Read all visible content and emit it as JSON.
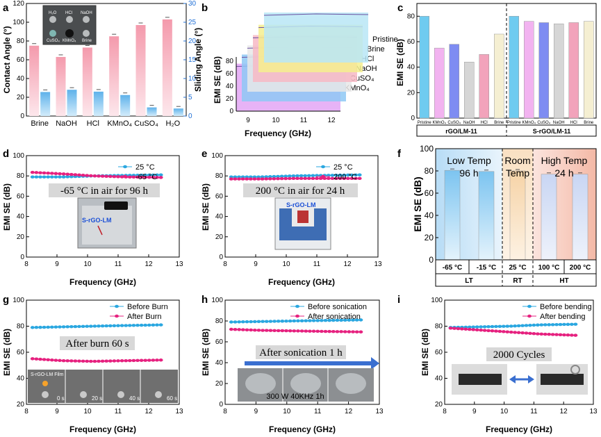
{
  "colors": {
    "pink": "#f2a5ba",
    "blue": "#6fb8ea",
    "cyan_marker": "#2aa7e0",
    "magenta_marker": "#e6217f",
    "arrow": "#3a6fd0"
  },
  "chart_data": [
    {
      "id": "a",
      "panel_label": "a",
      "type": "bar",
      "categories": [
        "Brine",
        "NaOH",
        "HCl",
        "KMnO₄",
        "CuSO₄",
        "H₂O"
      ],
      "series": [
        {
          "name": "",
          "axis": "left",
          "values": [
            75,
            63,
            73,
            85,
            97,
            103
          ]
        },
        {
          "name": "",
          "axis": "right",
          "values": [
            6.4,
            7.0,
            6.5,
            5.6,
            2.3,
            2.0
          ]
        }
      ],
      "ylabel": "Contact Angle (°)",
      "y2label": "Sliding Angle (°)",
      "ylim": [
        0,
        120
      ],
      "y2lim": [
        0,
        30
      ],
      "yticks": [
        0,
        20,
        40,
        60,
        80,
        100,
        120
      ],
      "y2ticks": [
        0,
        5,
        10,
        15,
        20,
        25,
        30
      ],
      "inset_labels": [
        "H₂O",
        "HCl",
        "NaOH",
        "CuSO₄",
        "KMnO₄",
        "Brine"
      ]
    },
    {
      "id": "b",
      "panel_label": "b",
      "type": "area",
      "xlabel": "Frequency (GHz)",
      "ylabel": "EMI SE (dB)",
      "xticks": [
        9,
        10,
        11,
        12
      ],
      "yticks": [
        0,
        20,
        40,
        60,
        80
      ],
      "series": [
        {
          "name": "Pristine",
          "color": "#b8e6f6",
          "level": 80
        },
        {
          "name": "Brine",
          "color": "#f5ef8e",
          "level": 76
        },
        {
          "name": "HCl",
          "color": "#f7b8c4",
          "level": 75
        },
        {
          "name": "NaOH",
          "color": "#e7e7e7",
          "level": 74
        },
        {
          "name": "CuSO₄",
          "color": "#8ec8f4",
          "level": 75
        },
        {
          "name": "KMnO₄",
          "color": "#e3a6f5",
          "level": 76
        }
      ]
    },
    {
      "id": "c",
      "panel_label": "c",
      "type": "bar",
      "ylabel": "EMI SE (dB)",
      "ylim": [
        0,
        90
      ],
      "yticks": [
        0,
        20,
        40,
        60,
        80
      ],
      "categories": [
        "Pristine",
        "KMnO₄",
        "CuSO₄",
        "NaOH",
        "HCl",
        "Brine",
        "Pristine",
        "KMnO₄",
        "CuSO₄",
        "NaOH",
        "HCl",
        "Brine"
      ],
      "values": [
        80,
        55,
        58,
        44,
        50,
        66,
        80,
        76,
        75,
        74,
        75,
        76
      ],
      "colors": [
        "#6fcbf0",
        "#f2b3f0",
        "#7e8cf2",
        "#d6d6d6",
        "#f2a3bb",
        "#f5efd2",
        "#6fcbf0",
        "#f2b3f0",
        "#7e8cf2",
        "#d6d6d6",
        "#f2a3bb",
        "#f5efd2"
      ],
      "groups": [
        "rGO/LM-11",
        "S-rGO/LM-11"
      ]
    },
    {
      "id": "d",
      "panel_label": "d",
      "type": "line",
      "xlabel": "Frequency (GHz)",
      "ylabel": "EMI SE (dB)",
      "xlim": [
        8,
        13
      ],
      "ylim": [
        0,
        100
      ],
      "xticks": [
        8,
        9,
        10,
        11,
        12,
        13
      ],
      "yticks": [
        0,
        20,
        40,
        60,
        80,
        100
      ],
      "series": [
        {
          "name": "25 °C",
          "color": "#2aa7e0",
          "x": [
            8.2,
            9.2,
            10.2,
            11.2,
            12.4
          ],
          "y": [
            79,
            79,
            80,
            80.5,
            81
          ]
        },
        {
          "name": "-65 °C",
          "color": "#e6217f",
          "x": [
            8.2,
            9.2,
            10.2,
            11.2,
            12.4
          ],
          "y": [
            83.5,
            82,
            80,
            79,
            78.5
          ]
        }
      ],
      "annotation": "-65 °C in air for 96 h",
      "inset_label": "S-rGO-LM"
    },
    {
      "id": "e",
      "panel_label": "e",
      "type": "line",
      "xlabel": "Frequency (GHz)",
      "ylabel": "EMI SE (dB)",
      "xlim": [
        8,
        13
      ],
      "ylim": [
        0,
        100
      ],
      "xticks": [
        8,
        9,
        10,
        11,
        12,
        13
      ],
      "yticks": [
        0,
        20,
        40,
        60,
        80,
        100
      ],
      "series": [
        {
          "name": "25 °C",
          "color": "#2aa7e0",
          "x": [
            8.2,
            9.2,
            10.2,
            11.2,
            12.4
          ],
          "y": [
            79,
            79,
            80,
            80.5,
            81
          ]
        },
        {
          "name": "200 °C",
          "color": "#e6217f",
          "x": [
            8.2,
            9.2,
            10.2,
            11.2,
            12.4
          ],
          "y": [
            77,
            77,
            77.5,
            77.5,
            77.5
          ]
        }
      ],
      "annotation": "200 °C in air for 24 h",
      "inset_label": "S-rGO-LM"
    },
    {
      "id": "f",
      "panel_label": "f",
      "type": "bar",
      "ylabel": "EMI SE (dB)",
      "ylim": [
        0,
        100
      ],
      "yticks": [
        0,
        20,
        40,
        60,
        80,
        100
      ],
      "categories": [
        "-65 °C",
        "-15 °C",
        "25 °C",
        "100 °C",
        "200 °C"
      ],
      "values": [
        80.5,
        79.5,
        80,
        77,
        77
      ],
      "group_labels": [
        "LT",
        "RT",
        "HT"
      ],
      "region_titles": [
        {
          "line1": "Low Temp",
          "line2": "96 h"
        },
        {
          "line1": "Room",
          "line2": "Temp"
        },
        {
          "line1": "High Temp",
          "line2": "24 h"
        }
      ]
    },
    {
      "id": "g",
      "panel_label": "g",
      "type": "line",
      "xlabel": "Frequency (GHz)",
      "ylabel": "EMI SE (dB)",
      "xlim": [
        8,
        13
      ],
      "ylim": [
        20,
        100
      ],
      "xticks": [
        8,
        9,
        10,
        11,
        12,
        13
      ],
      "yticks": [
        20,
        40,
        60,
        80,
        100
      ],
      "series": [
        {
          "name": "Before Burn",
          "color": "#2aa7e0",
          "x": [
            8.2,
            9.2,
            10.2,
            11.2,
            12.4
          ],
          "y": [
            79,
            79.5,
            80,
            80.5,
            81
          ]
        },
        {
          "name": "After Burn",
          "color": "#e6217f",
          "x": [
            8.2,
            9.2,
            10.2,
            11.2,
            12.4
          ],
          "y": [
            55,
            53.5,
            53,
            53.5,
            54
          ]
        }
      ],
      "annotation": "After burn 60 s",
      "inset_title": "S-rGO-LM Film",
      "inset_times": [
        "0 s",
        "20 s",
        "40 s",
        "60 s"
      ]
    },
    {
      "id": "h",
      "panel_label": "h",
      "type": "line",
      "xlabel": "Frequency (GHz)",
      "ylabel": "EMI SE (dB)",
      "xlim": [
        8,
        13
      ],
      "ylim": [
        0,
        100
      ],
      "xticks": [
        8,
        9,
        10,
        11,
        12,
        13
      ],
      "yticks": [
        0,
        20,
        40,
        60,
        80,
        100
      ],
      "series": [
        {
          "name": "Before sonication",
          "color": "#2aa7e0",
          "x": [
            8.2,
            9.2,
            10.2,
            11.2,
            12.4
          ],
          "y": [
            79,
            79.5,
            80,
            80.5,
            81
          ]
        },
        {
          "name": "After sonication",
          "color": "#e6217f",
          "x": [
            8.2,
            9.2,
            10.2,
            11.2,
            12.4
          ],
          "y": [
            72,
            71,
            70.5,
            70,
            69.5
          ]
        }
      ],
      "annotation": "After sonication 1 h",
      "inset_caption": "300 W  40KHz  1h"
    },
    {
      "id": "i",
      "panel_label": "i",
      "type": "line",
      "xlabel": "Frequency (GHz)",
      "ylabel": "EMI SE (dB)",
      "xlim": [
        8,
        13
      ],
      "ylim": [
        20,
        100
      ],
      "xticks": [
        8,
        9,
        10,
        11,
        12,
        13
      ],
      "yticks": [
        20,
        40,
        60,
        80,
        100
      ],
      "series": [
        {
          "name": "Before bending",
          "color": "#2aa7e0",
          "x": [
            8.2,
            9.2,
            10.2,
            11.2,
            12.4
          ],
          "y": [
            79,
            79.5,
            80,
            81,
            81.5
          ]
        },
        {
          "name": "After bending",
          "color": "#e6217f",
          "x": [
            8.2,
            9.2,
            10.2,
            11.2,
            12.4
          ],
          "y": [
            78.5,
            77,
            75.5,
            74,
            73
          ]
        }
      ],
      "annotation": "2000 Cycles"
    }
  ]
}
